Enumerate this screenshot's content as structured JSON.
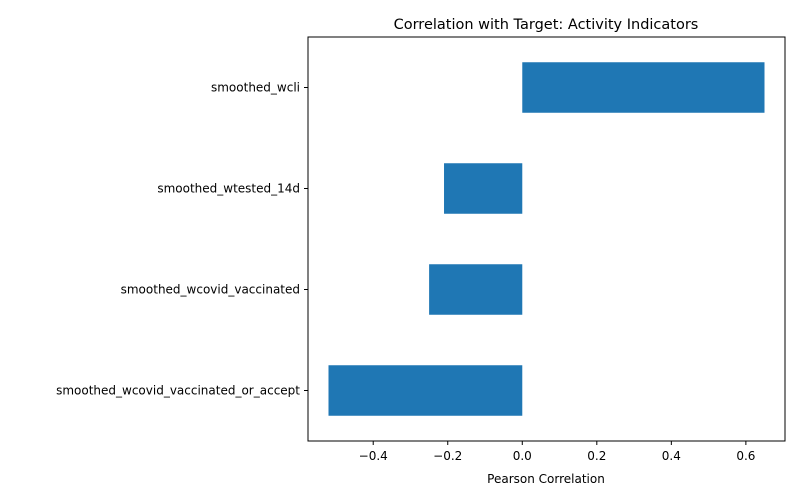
{
  "chart_data": {
    "type": "bar",
    "orientation": "horizontal",
    "title": "Correlation with Target: Activity Indicators",
    "xlabel": "Pearson Correlation",
    "ylabel": "",
    "categories": [
      "smoothed_wcli",
      "smoothed_wtested_14d",
      "smoothed_wcovid_vaccinated",
      "smoothed_wcovid_vaccinated_or_accept"
    ],
    "values": [
      0.65,
      -0.21,
      -0.25,
      -0.52
    ],
    "xlim": [
      -0.575,
      0.705
    ],
    "xticks": [
      -0.4,
      -0.2,
      0.0,
      0.2,
      0.4,
      0.6
    ],
    "xtick_labels": [
      "−0.4",
      "−0.2",
      "0.0",
      "0.2",
      "0.4",
      "0.6"
    ],
    "grid": false,
    "legend": "none",
    "bar_color": "#1f77b4"
  }
}
